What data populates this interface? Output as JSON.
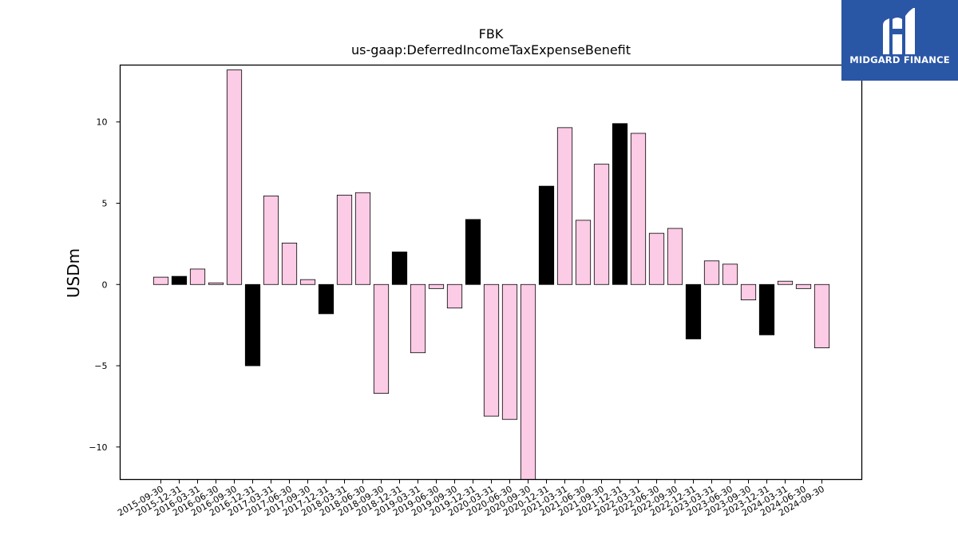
{
  "logo": {
    "text": "MIDGARD FINANCE",
    "icon": "midgard-logo-icon",
    "color": "#2a56a6"
  },
  "colors": {
    "positive": "#fccbe5",
    "highlight": "#000000",
    "stroke": "#000000"
  },
  "chart_data": {
    "type": "bar",
    "title": "FBK",
    "subtitle": "us-gaap:DeferredIncomeTaxExpenseBenefit",
    "xlabel": "",
    "ylabel": "USDm",
    "ylim": [
      -12,
      13.5
    ],
    "yticks": [
      -10,
      -5,
      0,
      5,
      10
    ],
    "grid": false,
    "categories": [
      "2015-09-30",
      "2015-12-31",
      "2016-03-31",
      "2016-06-30",
      "2016-09-30",
      "2016-12-31",
      "2017-03-31",
      "2017-06-30",
      "2017-09-30",
      "2017-12-31",
      "2018-03-31",
      "2018-06-30",
      "2018-09-30",
      "2018-12-31",
      "2019-03-31",
      "2019-06-30",
      "2019-09-30",
      "2019-12-31",
      "2020-03-31",
      "2020-06-30",
      "2020-09-30",
      "2020-12-31",
      "2021-03-31",
      "2021-06-30",
      "2021-09-30",
      "2021-12-31",
      "2022-03-31",
      "2022-06-30",
      "2022-09-30",
      "2022-12-31",
      "2023-03-31",
      "2023-06-30",
      "2023-09-30",
      "2023-12-31",
      "2024-03-31",
      "2024-06-30",
      "2024-09-30"
    ],
    "values": [
      0.45,
      0.5,
      0.95,
      0.1,
      13.2,
      -5.0,
      5.45,
      2.55,
      0.3,
      -1.8,
      5.5,
      5.65,
      -6.7,
      2.0,
      -4.2,
      -0.25,
      -1.45,
      4.0,
      -8.1,
      -8.3,
      -12.5,
      6.05,
      9.65,
      3.95,
      7.4,
      9.9,
      9.3,
      3.15,
      3.45,
      -3.35,
      1.45,
      1.25,
      -0.95,
      -3.1,
      0.2,
      -0.25,
      -3.9
    ],
    "highlighted": [
      false,
      true,
      false,
      false,
      false,
      true,
      false,
      false,
      false,
      true,
      false,
      false,
      false,
      true,
      false,
      false,
      false,
      true,
      false,
      false,
      false,
      true,
      false,
      false,
      false,
      true,
      false,
      false,
      false,
      true,
      false,
      false,
      false,
      true,
      false,
      false,
      false
    ]
  }
}
